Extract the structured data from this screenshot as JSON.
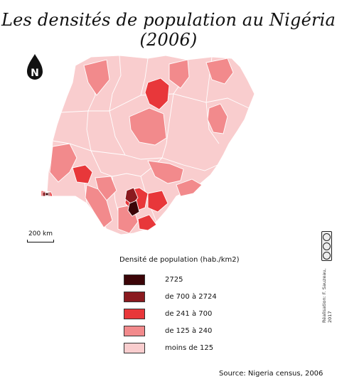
{
  "title": "Les densités de population au Nigéria (2006)",
  "north_letter": "N",
  "scale_label": "200 km",
  "legend": {
    "title": "Densité de population (hab./km2)",
    "items": [
      {
        "label": "2725",
        "color": "#3c0508"
      },
      {
        "label": "de 700 à 2724",
        "color": "#8a1a1f"
      },
      {
        "label": "de 241 à 700",
        "color": "#e8373a"
      },
      {
        "label": "de 125 à 240",
        "color": "#f28a8c"
      },
      {
        "label": "moins de 125",
        "color": "#f9cdce"
      }
    ]
  },
  "source": "Source: Nigeria census, 2006",
  "credits": "Réalisation: F. Sauzeau, 2017"
}
